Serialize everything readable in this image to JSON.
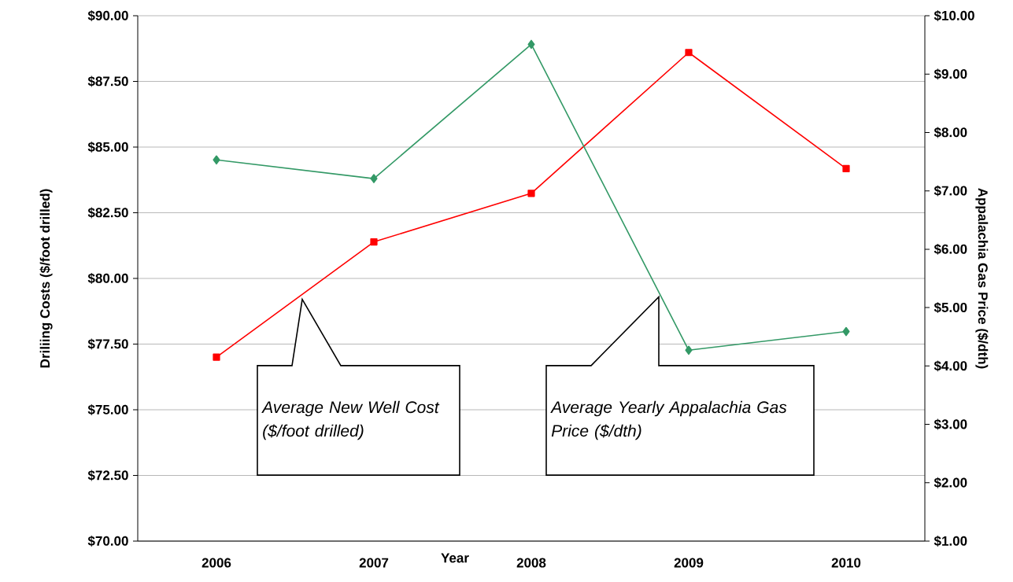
{
  "chart_data": {
    "type": "line",
    "xlabel": "Year",
    "ylabel": "Driliing Costs ($/foot drilled)",
    "y2label": "Appalachia Gas Price ($/dth)",
    "categories": [
      "2006",
      "2007",
      "2008",
      "2009",
      "2010"
    ],
    "series": [
      {
        "color": "#ff0000",
        "marker": "square",
        "values": [
          77.0,
          81.39,
          83.24,
          88.6,
          84.18
        ]
      },
      {
        "color": "#339966",
        "marker": "diamond",
        "axis": "y2",
        "values": [
          7.53,
          7.21,
          9.51,
          4.27,
          4.59
        ]
      }
    ],
    "ylim": [
      70,
      90
    ],
    "yticks": [
      {
        "value": 70,
        "label": "$70.00"
      },
      {
        "value": 72.5,
        "label": "$72.50"
      },
      {
        "value": 75,
        "label": "$75.00"
      },
      {
        "value": 77.5,
        "label": "$77.50"
      },
      {
        "value": 80,
        "label": "$80.00"
      },
      {
        "value": 82.5,
        "label": "$82.50"
      },
      {
        "value": 85,
        "label": "$85.00"
      },
      {
        "value": 87.5,
        "label": "$87.50"
      },
      {
        "value": 90,
        "label": "$90.00"
      }
    ],
    "y2lim": [
      1,
      10
    ],
    "y2ticks": [
      {
        "value": 1,
        "label": "$1.00"
      },
      {
        "value": 2,
        "label": "$2.00"
      },
      {
        "value": 3,
        "label": "$3.00"
      },
      {
        "value": 4,
        "label": "$4.00"
      },
      {
        "value": 5,
        "label": "$5.00"
      },
      {
        "value": 6,
        "label": "$6.00"
      },
      {
        "value": 7,
        "label": "$7.00"
      },
      {
        "value": 8,
        "label": "$8.00"
      },
      {
        "value": 9,
        "label": "$9.00"
      },
      {
        "value": 10,
        "label": "$10.00"
      }
    ],
    "grid": "y",
    "line_style": "solid",
    "annotations": [
      "Average New Well Cost ($/foot drilled)",
      "Average Yearly Appalachia Gas Price ($/dth)"
    ]
  }
}
